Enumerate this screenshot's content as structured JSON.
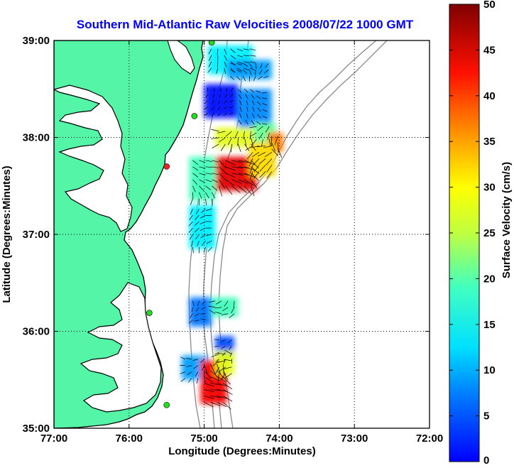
{
  "chart_data": {
    "type": "heatmap",
    "title": "Southern Mid-Atlantic Raw Velocities 2008/07/22 1000 GMT",
    "xlabel": "Longitude (Degrees:Minutes)",
    "ylabel": "Latitude (Degrees:Minutes)",
    "xlim": [
      77,
      72
    ],
    "ylim": [
      35,
      39
    ],
    "x_ticks": [
      77,
      76,
      75,
      74,
      73,
      72
    ],
    "x_tick_labels": [
      "77:00",
      "76:00",
      "75:00",
      "74:00",
      "73:00",
      "72:00"
    ],
    "y_ticks": [
      35,
      36,
      37,
      38,
      39
    ],
    "y_tick_labels": [
      "35:00",
      "36:00",
      "37:00",
      "38:00",
      "39:00"
    ],
    "grid": true,
    "colorbar": {
      "label": "Surface Velocity (cm/s)",
      "min": 0,
      "max": 50,
      "ticks": [
        0,
        5,
        10,
        15,
        20,
        25,
        30,
        35,
        40,
        45,
        50
      ],
      "tick_labels": [
        "0",
        "5",
        "10",
        "15",
        "20",
        "25",
        "30",
        "35",
        "40",
        "45",
        "50"
      ],
      "colormap": "jet"
    },
    "land_color": "#55f5a8",
    "water_color": "#ffffff",
    "coastline_color": "#000000",
    "isobath_color": "#8a8a8a",
    "site_markers": [
      {
        "lon": 74.9,
        "lat": 38.98,
        "color": "#22dd22"
      },
      {
        "lon": 75.13,
        "lat": 38.22,
        "color": "#22dd22"
      },
      {
        "lon": 75.5,
        "lat": 37.7,
        "color": "#ee2222"
      },
      {
        "lon": 75.73,
        "lat": 36.19,
        "color": "#22dd22"
      },
      {
        "lon": 75.5,
        "lat": 35.24,
        "color": "#22dd22"
      }
    ],
    "velocity_regions": [
      {
        "lon": [
          74.95,
          74.35
        ],
        "lat": [
          38.65,
          38.95
        ],
        "speed_cm_s": 18
      },
      {
        "lon": [
          74.7,
          74.1
        ],
        "lat": [
          38.6,
          38.8
        ],
        "speed_cm_s": 14
      },
      {
        "lon": [
          75.0,
          74.55
        ],
        "lat": [
          38.2,
          38.55
        ],
        "speed_cm_s": 7
      },
      {
        "lon": [
          74.55,
          74.1
        ],
        "lat": [
          38.1,
          38.5
        ],
        "speed_cm_s": 13
      },
      {
        "lon": [
          74.35,
          74.05
        ],
        "lat": [
          37.95,
          38.15
        ],
        "speed_cm_s": 24
      },
      {
        "lon": [
          74.15,
          73.95
        ],
        "lat": [
          37.85,
          38.05
        ],
        "speed_cm_s": 38
      },
      {
        "lon": [
          74.85,
          74.35
        ],
        "lat": [
          37.9,
          38.1
        ],
        "speed_cm_s": 30
      },
      {
        "lon": [
          74.85,
          74.3
        ],
        "lat": [
          37.45,
          37.8
        ],
        "speed_cm_s": 45
      },
      {
        "lon": [
          74.4,
          74.05
        ],
        "lat": [
          37.6,
          37.95
        ],
        "speed_cm_s": 33
      },
      {
        "lon": [
          75.2,
          74.85
        ],
        "lat": [
          37.35,
          37.8
        ],
        "speed_cm_s": 22
      },
      {
        "lon": [
          75.2,
          74.85
        ],
        "lat": [
          36.85,
          37.3
        ],
        "speed_cm_s": 18
      },
      {
        "lon": [
          75.2,
          74.9
        ],
        "lat": [
          36.05,
          36.35
        ],
        "speed_cm_s": 12
      },
      {
        "lon": [
          74.9,
          74.55
        ],
        "lat": [
          36.15,
          36.35
        ],
        "speed_cm_s": 22
      },
      {
        "lon": [
          74.85,
          74.6
        ],
        "lat": [
          35.7,
          35.95
        ],
        "speed_cm_s": 10
      },
      {
        "lon": [
          75.3,
          74.95
        ],
        "lat": [
          35.5,
          35.75
        ],
        "speed_cm_s": 14
      },
      {
        "lon": [
          75.05,
          74.7
        ],
        "lat": [
          35.25,
          35.7
        ],
        "speed_cm_s": 44
      },
      {
        "lon": [
          74.85,
          74.6
        ],
        "lat": [
          35.55,
          35.8
        ],
        "speed_cm_s": 30
      }
    ]
  }
}
